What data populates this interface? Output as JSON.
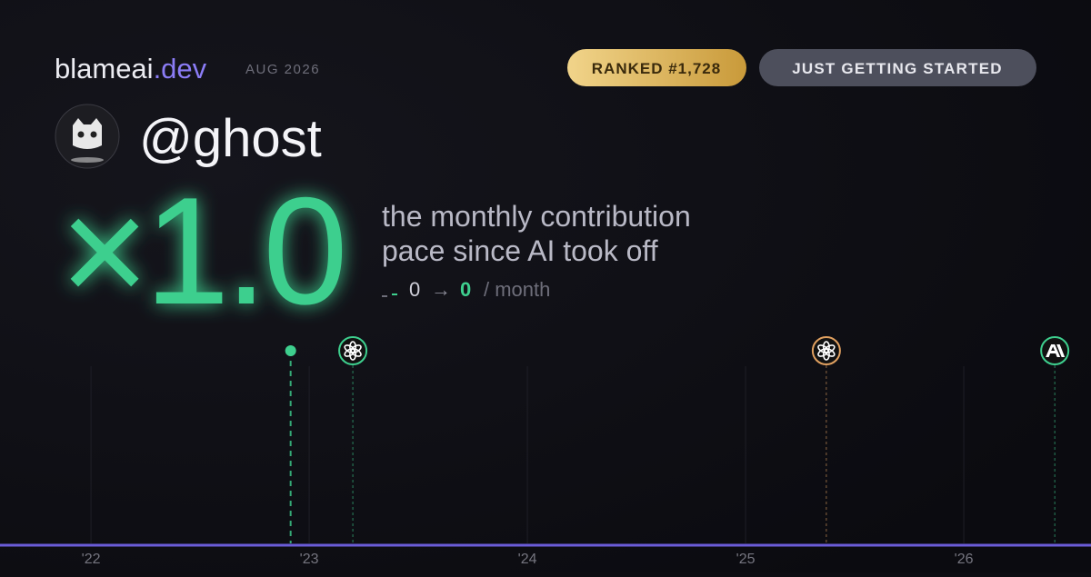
{
  "header": {
    "brand": "blameai",
    "brand_suffix": ".dev",
    "date": "AUG 2026",
    "rank_badge": "RANKED #1,728",
    "status_badge": "JUST GETTING STARTED"
  },
  "profile": {
    "handle": "@ghost"
  },
  "headline": {
    "multiplier": "×1.0",
    "description": [
      "the monthly contribution",
      "pace since AI took off"
    ],
    "before": 0,
    "arrow": "→",
    "after": 0,
    "unit": "/ month"
  },
  "timeline": {
    "xlim": [
      2021.583,
      2026.583
    ],
    "xticks": [
      {
        "value": 2022,
        "label": "'22"
      },
      {
        "value": 2023,
        "label": "'23"
      },
      {
        "value": 2024,
        "label": "'24"
      },
      {
        "value": 2025,
        "label": "'25"
      },
      {
        "value": 2026,
        "label": "'26"
      }
    ],
    "events": [
      {
        "x": 2022.915,
        "color": "#3ecf8e",
        "marker": "dot"
      },
      {
        "x": 2023.2,
        "color": "#3ecf8e",
        "marker": "openai"
      },
      {
        "x": 2025.37,
        "color": "#e0a060",
        "marker": "openai"
      },
      {
        "x": 2026.417,
        "color": "#3ecf8e",
        "marker": "anthropic"
      }
    ]
  }
}
